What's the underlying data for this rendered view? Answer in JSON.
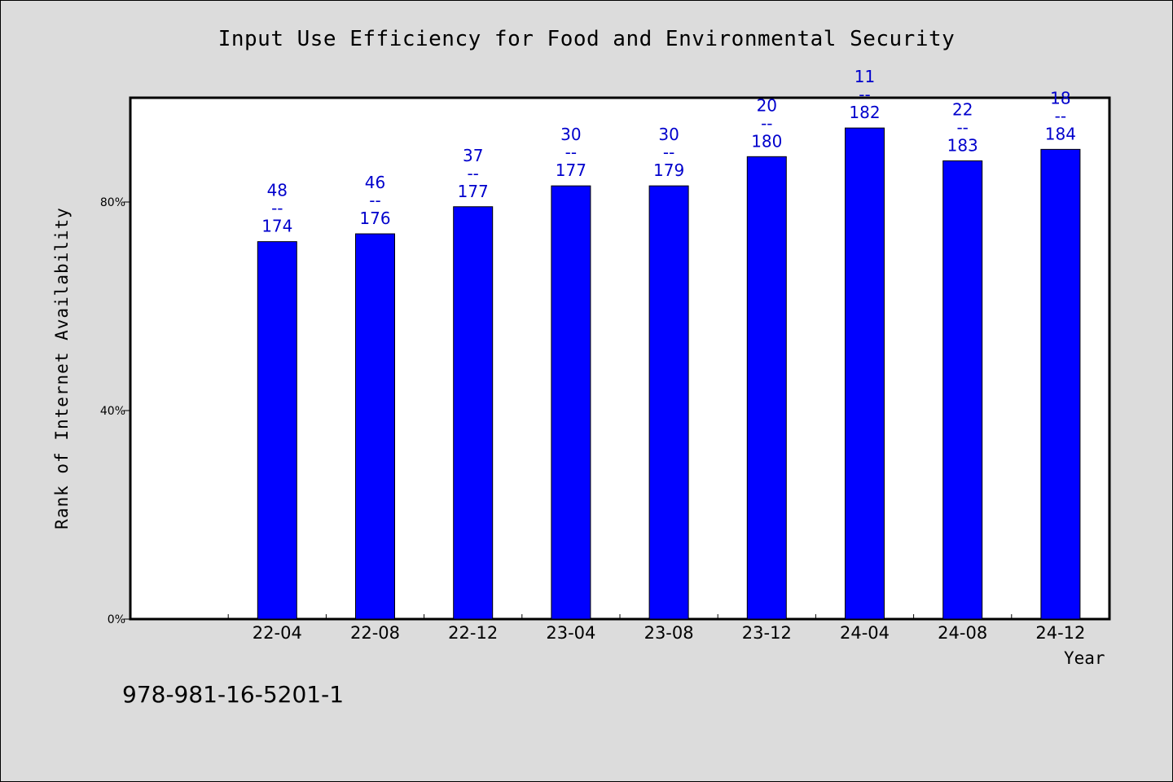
{
  "chart_data": {
    "type": "bar",
    "title": "Input Use Efficiency for Food and Environmental Security",
    "xlabel": "Year",
    "ylabel": "Rank of Internet Availability",
    "categories": [
      "22-04",
      "22-08",
      "22-12",
      "23-04",
      "23-08",
      "23-12",
      "24-04",
      "24-08",
      "24-12"
    ],
    "series": [
      {
        "values": [
          72.4,
          73.9,
          79.1,
          83.1,
          83.1,
          88.7,
          94.2,
          87.9,
          90.1
        ],
        "labels": [
          [
            "48",
            "--",
            "174"
          ],
          [
            "46",
            "--",
            "176"
          ],
          [
            "37",
            "--",
            "177"
          ],
          [
            "30",
            "--",
            "177"
          ],
          [
            "30",
            "--",
            "179"
          ],
          [
            "20",
            "--",
            "180"
          ],
          [
            "11",
            "--",
            "182"
          ],
          [
            "22",
            "--",
            "183"
          ],
          [
            "18",
            "--",
            "184"
          ]
        ],
        "color": "#0000ff"
      }
    ],
    "yticks": [
      "0%",
      "40%",
      "80%"
    ],
    "ytick_values": [
      0,
      40,
      80
    ],
    "ylim": [
      0,
      100
    ],
    "grid": false,
    "legend": "none"
  },
  "colors": {
    "bar": "#0000ff",
    "data_label": "#0000cc",
    "background": "#dcdcdc",
    "plot_background": "#ffffff"
  },
  "footer": {
    "text": "978-981-16-5201-1"
  }
}
